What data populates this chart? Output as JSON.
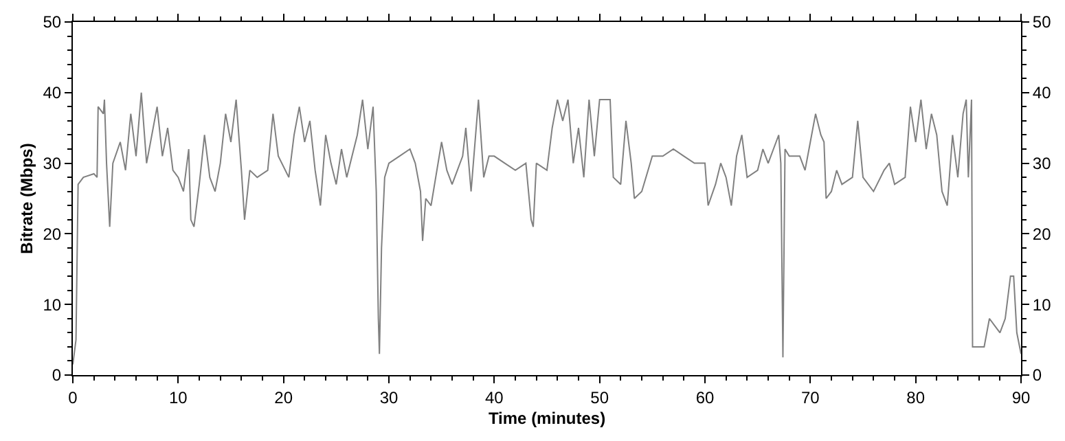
{
  "chart_data": {
    "type": "line",
    "xlabel": "Time (minutes)",
    "ylabel": "Bitrate (Mbps)",
    "xlim": [
      0,
      90
    ],
    "xticks": [
      0,
      10,
      20,
      30,
      40,
      50,
      60,
      70,
      80,
      90
    ],
    "ylim": [
      0,
      50
    ],
    "yticks": [
      0,
      10,
      20,
      30,
      40,
      50
    ],
    "y2lim": [
      0,
      50
    ],
    "y2ticks": [
      0,
      10,
      20,
      30,
      40,
      50
    ],
    "marker": "none",
    "line_style": "solid",
    "series": [
      {
        "color": "#808080",
        "x": [
          0,
          0.3,
          0.5,
          1,
          2,
          2.3,
          2.4,
          2.9,
          3,
          3.2,
          3.5,
          3.8,
          4.5,
          5,
          5.5,
          6,
          6.5,
          7,
          7.5,
          8,
          8.5,
          9,
          9.5,
          10,
          10.5,
          11,
          11.2,
          11.5,
          12,
          12.5,
          13,
          13.5,
          14,
          14.5,
          15,
          15.5,
          16,
          16.3,
          16.8,
          17.5,
          18.5,
          19,
          19.5,
          20.5,
          21,
          21.5,
          22,
          22.5,
          23,
          23.5,
          24,
          24.5,
          25,
          25.5,
          26,
          26.5,
          27,
          27.5,
          28,
          28.5,
          28.8,
          29,
          29.1,
          29.3,
          29.6,
          30,
          31,
          32,
          32.5,
          33,
          33.2,
          33.5,
          34,
          35,
          35.5,
          36,
          37,
          37.3,
          37.8,
          38.5,
          39,
          39.5,
          40,
          41,
          42,
          43,
          43.5,
          43.7,
          44,
          45,
          45.5,
          46,
          46.5,
          47,
          47.5,
          48,
          48.5,
          49,
          49.5,
          50,
          51,
          51.3,
          52,
          52.5,
          53,
          53.3,
          54,
          55,
          56,
          57,
          58,
          59,
          60,
          60.3,
          61,
          61.5,
          62,
          62.5,
          63,
          63.5,
          64,
          65,
          65.5,
          66,
          67,
          67.2,
          67.4,
          67.6,
          68,
          69,
          69.5,
          70,
          70.5,
          71,
          71.3,
          71.5,
          72,
          72.5,
          73,
          74,
          74.5,
          75,
          76,
          77,
          77.5,
          78,
          79,
          79.5,
          80,
          80.5,
          81,
          81.5,
          82,
          82.5,
          83,
          83.5,
          84,
          84.5,
          84.8,
          85,
          85.3,
          85.4,
          86,
          86.5,
          87,
          87.5,
          88,
          88.5,
          89,
          89.3,
          89.6,
          90
        ],
        "values": [
          1.5,
          5,
          27,
          28,
          28.5,
          28,
          38,
          37,
          39,
          30,
          21,
          30,
          33,
          29,
          37,
          31,
          40,
          30,
          34,
          38,
          31,
          35,
          29,
          28,
          26,
          32,
          22,
          21,
          27,
          34,
          28,
          26,
          30,
          37,
          33,
          39,
          29,
          22,
          29,
          28,
          29,
          37,
          31,
          28,
          34,
          38,
          33,
          36,
          29,
          24,
          34,
          30,
          27,
          32,
          28,
          31,
          34,
          39,
          32,
          38,
          26,
          8,
          3,
          18,
          28,
          30,
          31,
          32,
          30,
          26,
          19,
          25,
          24,
          33,
          29,
          27,
          31,
          35,
          26,
          39,
          28,
          31,
          31,
          30,
          29,
          30,
          22,
          21,
          30,
          29,
          35,
          39,
          36,
          39,
          30,
          35,
          28,
          39,
          31,
          39,
          39,
          28,
          27,
          36,
          30,
          25,
          26,
          31,
          31,
          32,
          31,
          30,
          30,
          24,
          27,
          30,
          28,
          24,
          31,
          34,
          28,
          29,
          32,
          30,
          34,
          30,
          2.5,
          32,
          31,
          31,
          29,
          33,
          37,
          34,
          33,
          25,
          26,
          29,
          27,
          28,
          36,
          28,
          26,
          29,
          30,
          27,
          28,
          38,
          33,
          39,
          32,
          37,
          34,
          26,
          24,
          34,
          28,
          37,
          39,
          28,
          39,
          4,
          4,
          4,
          8,
          7,
          6,
          8,
          14,
          14,
          6,
          3
        ]
      }
    ]
  }
}
